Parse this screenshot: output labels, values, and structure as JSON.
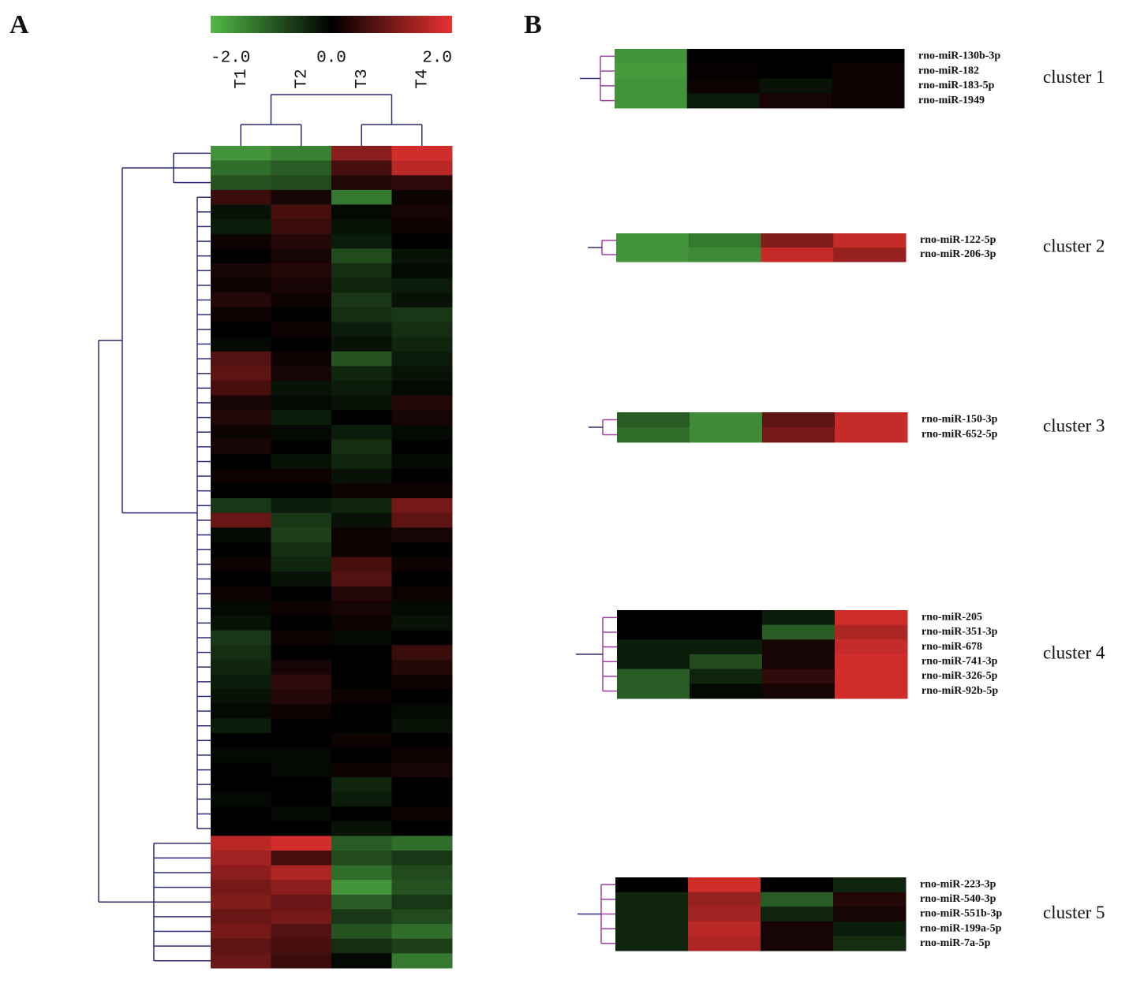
{
  "chart_data": [
    {
      "type": "heatmap",
      "panel_label": "A",
      "columns": [
        "T1",
        "T2",
        "T3",
        "T4"
      ],
      "clim": [
        -2,
        2
      ],
      "cticks": [
        {
          "value": -2,
          "label": "-2.0"
        },
        {
          "value": 0,
          "label": "0.0"
        },
        {
          "value": 2,
          "label": "2.0"
        }
      ],
      "colors": [
        "#52b848",
        "#000000",
        "#e83230"
      ],
      "values": [
        [
          -1.6,
          -1.4,
          1.2,
          1.8
        ],
        [
          -1.2,
          -1.0,
          0.6,
          1.6
        ],
        [
          -0.9,
          -0.8,
          0.3,
          0.4
        ],
        [
          0.5,
          0.2,
          -1.3,
          0.1
        ],
        [
          -0.2,
          0.6,
          -0.1,
          0.2
        ],
        [
          -0.3,
          0.5,
          -0.2,
          0.1
        ],
        [
          0.1,
          0.3,
          -0.3,
          0.0
        ],
        [
          0.0,
          0.2,
          -0.8,
          -0.2
        ],
        [
          0.2,
          0.3,
          -0.5,
          -0.1
        ],
        [
          0.1,
          0.2,
          -0.4,
          -0.3
        ],
        [
          0.3,
          0.1,
          -0.6,
          -0.2
        ],
        [
          0.1,
          0.0,
          -0.5,
          -0.6
        ],
        [
          0.0,
          0.1,
          -0.3,
          -0.5
        ],
        [
          -0.1,
          0.0,
          -0.2,
          -0.4
        ],
        [
          0.7,
          0.1,
          -0.9,
          -0.3
        ],
        [
          0.8,
          0.2,
          -0.4,
          -0.2
        ],
        [
          0.6,
          -0.2,
          -0.3,
          -0.1
        ],
        [
          0.2,
          -0.1,
          -0.2,
          0.3
        ],
        [
          0.3,
          -0.3,
          0.0,
          0.2
        ],
        [
          0.1,
          -0.1,
          -0.3,
          -0.1
        ],
        [
          0.2,
          0.0,
          -0.5,
          0.0
        ],
        [
          0.0,
          -0.2,
          -0.4,
          -0.1
        ],
        [
          0.1,
          0.1,
          -0.2,
          0.0
        ],
        [
          0.0,
          0.0,
          0.1,
          0.1
        ],
        [
          -0.6,
          -0.3,
          -0.4,
          1.0
        ],
        [
          0.9,
          -0.6,
          -0.2,
          0.8
        ],
        [
          -0.1,
          -0.7,
          0.1,
          0.2
        ],
        [
          0.0,
          -0.5,
          0.1,
          0.0
        ],
        [
          0.1,
          -0.4,
          0.6,
          0.1
        ],
        [
          0.0,
          -0.2,
          0.7,
          0.0
        ],
        [
          0.1,
          0.0,
          0.3,
          0.1
        ],
        [
          -0.1,
          0.1,
          0.2,
          -0.1
        ],
        [
          -0.2,
          0.0,
          0.1,
          -0.2
        ],
        [
          -0.6,
          0.1,
          -0.1,
          0.0
        ],
        [
          -0.5,
          0.0,
          0.0,
          0.5
        ],
        [
          -0.4,
          0.2,
          0.0,
          0.3
        ],
        [
          -0.3,
          0.4,
          0.0,
          0.1
        ],
        [
          -0.2,
          0.3,
          0.1,
          0.0
        ],
        [
          -0.1,
          0.1,
          0.0,
          -0.1
        ],
        [
          -0.3,
          0.0,
          0.0,
          -0.2
        ],
        [
          0.0,
          0.0,
          0.1,
          0.0
        ],
        [
          -0.1,
          -0.1,
          0.0,
          0.1
        ],
        [
          0.0,
          -0.1,
          0.1,
          0.2
        ],
        [
          0.0,
          0.0,
          -0.4,
          0.0
        ],
        [
          -0.1,
          0.0,
          -0.3,
          0.0
        ],
        [
          0.0,
          -0.1,
          0.0,
          0.1
        ],
        [
          0.0,
          0.0,
          -0.2,
          0.0
        ],
        [
          1.6,
          1.8,
          -1.0,
          -1.2
        ],
        [
          1.4,
          0.6,
          -0.8,
          -0.6
        ],
        [
          1.2,
          1.5,
          -1.2,
          -0.8
        ],
        [
          1.0,
          1.2,
          -1.6,
          -0.9
        ],
        [
          1.1,
          0.9,
          -1.0,
          -0.6
        ],
        [
          0.9,
          1.0,
          -0.6,
          -0.8
        ],
        [
          1.0,
          0.7,
          -0.9,
          -1.2
        ],
        [
          0.8,
          0.6,
          -0.5,
          -0.7
        ],
        [
          0.9,
          0.5,
          -0.1,
          -1.3
        ]
      ]
    },
    {
      "type": "cluster-heatmaps",
      "panel_label": "B",
      "clusters": [
        {
          "name": "cluster 1",
          "rows": [
            "rno-miR-130b-3p",
            "rno-miR-182",
            "rno-miR-183-5p",
            "rno-miR-1949"
          ],
          "values": [
            [
              -1.6,
              0.0,
              0.0,
              0.0
            ],
            [
              -1.7,
              0.05,
              0.0,
              0.1
            ],
            [
              -1.6,
              0.1,
              -0.2,
              0.1
            ],
            [
              -1.6,
              -0.3,
              0.2,
              0.1
            ]
          ]
        },
        {
          "name": "cluster 2",
          "rows": [
            "rno-miR-122-5p",
            "rno-miR-206-3p"
          ],
          "values": [
            [
              -1.6,
              -1.3,
              1.1,
              1.7
            ],
            [
              -1.6,
              -1.5,
              1.7,
              1.3
            ]
          ]
        },
        {
          "name": "cluster 3",
          "rows": [
            "rno-miR-150-3p",
            "rno-miR-652-5p"
          ],
          "values": [
            [
              -1.0,
              -1.5,
              0.8,
              1.7
            ],
            [
              -1.2,
              -1.5,
              1.0,
              1.7
            ]
          ]
        },
        {
          "name": "cluster 4",
          "rows": [
            "rno-miR-205",
            "rno-miR-351-3p",
            "rno-miR-678",
            "rno-miR-741-3p",
            "rno-miR-326-5p",
            "rno-miR-92b-5p"
          ],
          "values": [
            [
              0.0,
              0.0,
              -0.3,
              1.8
            ],
            [
              0.0,
              0.0,
              -1.0,
              1.5
            ],
            [
              -0.3,
              -0.3,
              0.2,
              1.7
            ],
            [
              -0.3,
              -0.8,
              0.2,
              1.8
            ],
            [
              -1.0,
              -0.4,
              0.4,
              1.8
            ],
            [
              -1.0,
              -0.1,
              0.2,
              1.8
            ]
          ]
        },
        {
          "name": "cluster 5",
          "rows": [
            "rno-miR-223-3p",
            "rno-miR-540-3p",
            "rno-miR-551b-3p",
            "rno-miR-199a-5p",
            "rno-miR-7a-5p"
          ],
          "values": [
            [
              0.0,
              1.8,
              0.0,
              -0.4
            ],
            [
              -0.4,
              1.3,
              -1.0,
              0.3
            ],
            [
              -0.4,
              1.4,
              -0.4,
              0.2
            ],
            [
              -0.4,
              1.6,
              0.2,
              -0.3
            ],
            [
              -0.4,
              1.5,
              0.2,
              -0.5
            ]
          ]
        }
      ]
    }
  ]
}
